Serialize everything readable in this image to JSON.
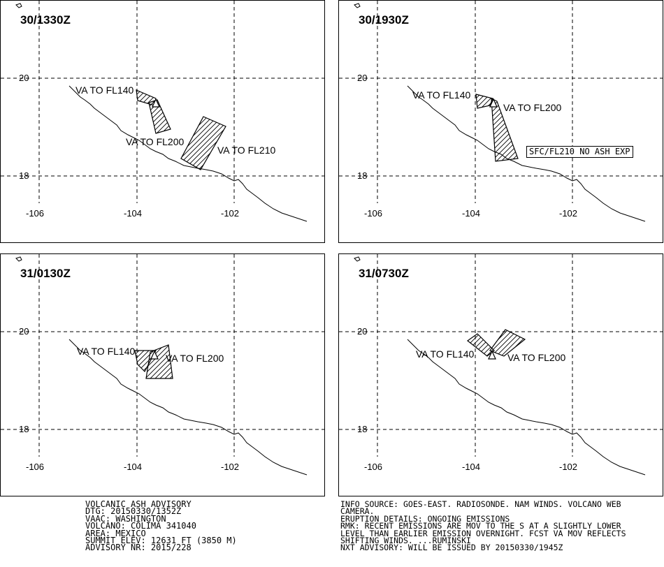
{
  "panels": [
    {
      "time": "30/1330Z",
      "lat_labels": [
        "20",
        "18"
      ],
      "lon_labels": [
        "-106",
        "-104",
        "-102"
      ],
      "labels": [
        "VA TO FL140",
        "VA TO FL200",
        "VA TO FL210"
      ]
    },
    {
      "time": "30/1930Z",
      "lat_labels": [
        "20",
        "18"
      ],
      "lon_labels": [
        "-106",
        "-104",
        "-102"
      ],
      "labels": [
        "VA TO FL140",
        "VA TO FL200"
      ],
      "box_label": "SFC/FL210 NO ASH EXP"
    },
    {
      "time": "31/0130Z",
      "lat_labels": [
        "20",
        "18"
      ],
      "lon_labels": [
        "-106",
        "-104",
        "-102"
      ],
      "labels": [
        "VA TO FL140",
        "VA TO FL200"
      ]
    },
    {
      "time": "31/0730Z",
      "lat_labels": [
        "20",
        "18"
      ],
      "lon_labels": [
        "-106",
        "-104",
        "-102"
      ],
      "labels": [
        "VA TO FL140",
        "VA TO FL200"
      ]
    }
  ],
  "advisory_left": [
    "VOLCANIC ASH ADVISORY",
    "DTG: 20150330/1352Z",
    "VAAC: WASHINGTON",
    "VOLCANO: COLIMA 341040",
    "AREA: MEXICO",
    "SUMMIT ELEV: 12631 FT (3850 M)",
    "ADVISORY NR: 2015/228"
  ],
  "advisory_right": [
    "INFO SOURCE: GOES-EAST. RADIOSONDE. NAM WINDS. VOLCANO WEB",
    "CAMERA.",
    "ERUPTION DETAILS: ONGOING EMISSIONS",
    "RMK: RECENT EMISSIONS ARE MOV TO THE S AT A SLIGHTLY LOWER",
    "LEVEL THAN EARLIER EMISSION OVERNIGHT. FCST VA MOV REFLECTS",
    "SHIFTING WINDS. ...RUMINSKI",
    "NXT ADVISORY: WILL BE ISSUED BY 20150330/1945Z"
  ]
}
